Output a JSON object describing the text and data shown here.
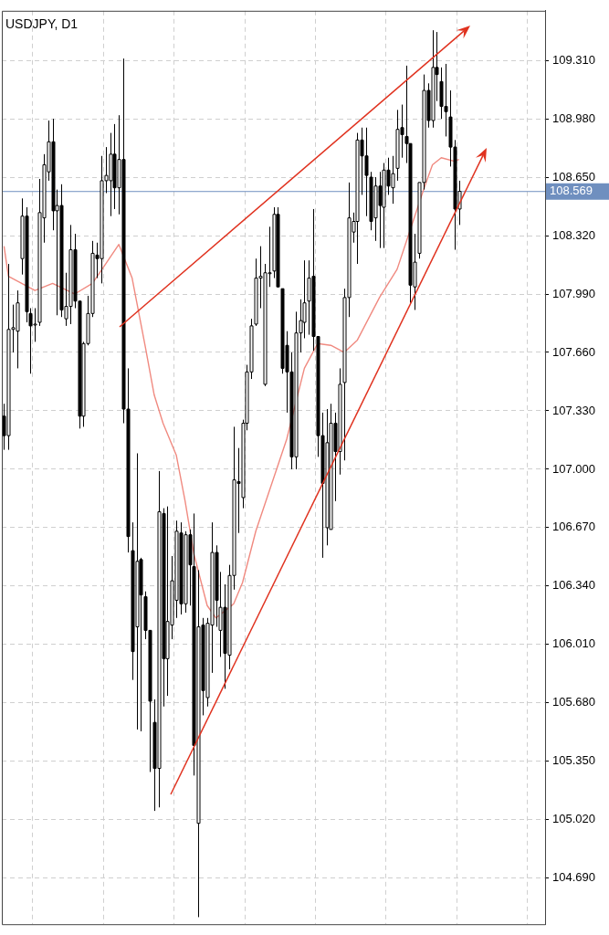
{
  "chart_data": {
    "type": "candlestick",
    "title": "USDJPY, D1",
    "categories": [
      null,
      null,
      null,
      null,
      null,
      null,
      null,
      null,
      null,
      null,
      null,
      null,
      null,
      null,
      null,
      null,
      null,
      null,
      null,
      null,
      null,
      null,
      null,
      null,
      null,
      null,
      null,
      null,
      null,
      null,
      null,
      null,
      null,
      null,
      null,
      null,
      null,
      null,
      null,
      null,
      null,
      null,
      null,
      null,
      null,
      null,
      null,
      null,
      null,
      null,
      null,
      null,
      null,
      null,
      null,
      null,
      null,
      null,
      null,
      null,
      null,
      null,
      null,
      null,
      null,
      null,
      null,
      null,
      null,
      null,
      null,
      null,
      null,
      null,
      null,
      null,
      null,
      null,
      null,
      null,
      null,
      null,
      null,
      null,
      null,
      null,
      null,
      null,
      null,
      null,
      null,
      null,
      null,
      null,
      null,
      null,
      null,
      null,
      null,
      null,
      null,
      null,
      null,
      null,
      null,
      null,
      null,
      null,
      null,
      null,
      null,
      null,
      null,
      null,
      null,
      null,
      null,
      null,
      null,
      null,
      null,
      null,
      null
    ],
    "ohlc": [
      [
        107.3,
        107.37,
        107.11,
        107.19
      ],
      [
        107.19,
        108.16,
        107.11,
        107.79
      ],
      [
        107.79,
        107.93,
        107.66,
        107.8
      ],
      [
        107.78,
        108.01,
        107.57,
        107.94
      ],
      [
        108.19,
        108.53,
        108.1,
        108.43
      ],
      [
        108.43,
        108.48,
        107.83,
        107.89
      ],
      [
        107.88,
        107.91,
        107.54,
        107.81
      ],
      [
        107.82,
        107.91,
        107.72,
        107.82
      ],
      [
        107.83,
        108.64,
        107.81,
        108.45
      ],
      [
        108.42,
        108.78,
        108.28,
        108.72
      ],
      [
        108.68,
        108.97,
        108.63,
        108.85
      ],
      [
        108.85,
        108.98,
        108.35,
        108.46
      ],
      [
        108.46,
        108.58,
        107.87,
        108.49
      ],
      [
        108.49,
        108.61,
        107.86,
        107.9
      ],
      [
        107.85,
        108.11,
        107.81,
        107.92
      ],
      [
        107.92,
        108.38,
        107.82,
        108.24
      ],
      [
        108.24,
        108.33,
        107.91,
        107.95
      ],
      [
        107.95,
        107.95,
        107.23,
        107.3
      ],
      [
        107.3,
        107.72,
        107.24,
        107.71
      ],
      [
        107.71,
        107.98,
        107.7,
        107.88
      ],
      [
        107.88,
        108.29,
        107.86,
        108.22
      ],
      [
        108.21,
        108.28,
        108.08,
        108.19
      ],
      [
        108.19,
        108.77,
        108.05,
        108.63
      ],
      [
        108.63,
        108.82,
        108.56,
        108.66
      ],
      [
        108.63,
        108.9,
        108.43,
        108.78
      ],
      [
        108.78,
        108.95,
        108.47,
        108.59
      ],
      [
        108.59,
        109.0,
        108.44,
        108.75
      ],
      [
        108.75,
        109.32,
        107.26,
        107.34
      ],
      [
        107.34,
        107.57,
        106.53,
        106.62
      ],
      [
        106.54,
        106.7,
        105.81,
        105.97
      ],
      [
        106.11,
        107.09,
        105.53,
        106.48
      ],
      [
        106.49,
        106.5,
        105.52,
        106.29
      ],
      [
        106.28,
        106.31,
        106.04,
        106.09
      ],
      [
        106.09,
        106.09,
        105.29,
        105.69
      ],
      [
        105.57,
        105.7,
        105.07,
        105.31
      ],
      [
        105.31,
        106.99,
        105.09,
        106.76
      ],
      [
        106.75,
        106.78,
        105.66,
        105.93
      ],
      [
        105.93,
        106.79,
        105.72,
        106.14
      ],
      [
        106.12,
        106.51,
        106.04,
        106.37
      ],
      [
        106.26,
        106.71,
        106.16,
        106.65
      ],
      [
        106.64,
        106.7,
        106.18,
        106.24
      ],
      [
        106.24,
        106.65,
        106.19,
        106.63
      ],
      [
        106.63,
        106.66,
        106.23,
        106.46
      ],
      [
        106.45,
        106.75,
        105.27,
        105.44
      ],
      [
        105.0,
        106.43,
        104.47,
        106.11
      ],
      [
        106.12,
        106.16,
        105.61,
        105.75
      ],
      [
        105.71,
        106.16,
        105.66,
        106.13
      ],
      [
        106.12,
        106.7,
        105.85,
        106.53
      ],
      [
        106.53,
        106.57,
        106.11,
        106.26
      ],
      [
        106.09,
        106.42,
        105.94,
        106.22
      ],
      [
        106.22,
        106.35,
        105.76,
        105.96
      ],
      [
        105.95,
        106.46,
        105.87,
        106.4
      ],
      [
        106.4,
        107.24,
        106.32,
        106.94
      ],
      [
        106.93,
        107.12,
        106.64,
        106.92
      ],
      [
        106.84,
        107.28,
        106.78,
        107.26
      ],
      [
        107.26,
        107.59,
        107.22,
        107.55
      ],
      [
        107.55,
        107.85,
        107.51,
        107.81
      ],
      [
        107.82,
        108.19,
        107.81,
        108.08
      ],
      [
        108.08,
        108.26,
        107.91,
        108.09
      ],
      [
        107.48,
        108.16,
        107.47,
        108.11
      ],
      [
        108.11,
        108.37,
        108.03,
        108.11
      ],
      [
        108.12,
        108.48,
        108.08,
        108.44
      ],
      [
        108.44,
        108.48,
        108.03,
        108.03
      ],
      [
        108.02,
        108.02,
        107.54,
        107.57
      ],
      [
        107.7,
        107.78,
        107.32,
        107.55
      ],
      [
        107.55,
        107.66,
        107.0,
        107.07
      ],
      [
        107.07,
        107.89,
        107.0,
        107.77
      ],
      [
        107.77,
        107.96,
        107.66,
        107.84
      ],
      [
        107.83,
        108.18,
        107.74,
        107.94
      ],
      [
        107.95,
        108.18,
        107.76,
        108.08
      ],
      [
        108.09,
        108.47,
        107.67,
        107.75
      ],
      [
        107.75,
        107.75,
        107.07,
        107.19
      ],
      [
        107.19,
        107.32,
        106.5,
        106.92
      ],
      [
        106.67,
        107.34,
        106.57,
        107.15
      ],
      [
        106.66,
        107.37,
        106.66,
        107.26
      ],
      [
        107.26,
        107.32,
        106.82,
        107.1
      ],
      [
        107.1,
        107.57,
        106.97,
        107.48
      ],
      [
        107.49,
        108.02,
        107.05,
        107.97
      ],
      [
        107.97,
        108.62,
        107.86,
        108.42
      ],
      [
        108.34,
        108.45,
        108.28,
        108.4
      ],
      [
        108.4,
        108.9,
        108.16,
        108.86
      ],
      [
        108.86,
        108.93,
        108.55,
        108.77
      ],
      [
        108.77,
        108.93,
        108.43,
        108.66
      ],
      [
        108.65,
        108.68,
        108.35,
        108.4
      ],
      [
        108.42,
        108.65,
        108.29,
        108.6
      ],
      [
        108.6,
        108.68,
        108.25,
        108.49
      ],
      [
        108.48,
        108.73,
        108.25,
        108.69
      ],
      [
        108.69,
        108.76,
        108.55,
        108.6
      ],
      [
        108.59,
        108.77,
        108.5,
        108.67
      ],
      [
        108.7,
        109.03,
        108.63,
        108.92
      ],
      [
        108.93,
        109.06,
        108.76,
        108.89
      ],
      [
        108.88,
        109.28,
        108.73,
        108.84
      ],
      [
        108.84,
        108.84,
        107.94,
        108.04
      ],
      [
        108.03,
        108.33,
        107.9,
        108.17
      ],
      [
        108.22,
        108.62,
        108.19,
        108.62
      ],
      [
        108.62,
        109.23,
        108.58,
        109.14
      ],
      [
        109.14,
        109.18,
        108.93,
        108.97
      ],
      [
        108.97,
        109.48,
        108.93,
        109.27
      ],
      [
        109.27,
        109.47,
        109.08,
        109.23
      ],
      [
        109.19,
        109.27,
        108.98,
        109.05
      ],
      [
        109.05,
        109.29,
        108.88,
        109.02
      ],
      [
        108.99,
        109.14,
        108.71,
        108.82
      ],
      [
        108.82,
        108.86,
        108.24,
        108.47
      ],
      [
        108.47,
        108.63,
        108.38,
        108.57
      ],
      null,
      null,
      null,
      null,
      null,
      null,
      null,
      null,
      null,
      null,
      null,
      null,
      null,
      null,
      null,
      null,
      null,
      null,
      null
    ],
    "series": [
      {
        "type": "line",
        "color": "#f08a80",
        "values": [
          108.26,
          108.09,
          null,
          null,
          null,
          null,
          null,
          108.01,
          null,
          null,
          null,
          108.05,
          null,
          null,
          null,
          null,
          107.99,
          null,
          null,
          null,
          108.05,
          null,
          null,
          108.16,
          null,
          null,
          108.27,
          null,
          null,
          108.08,
          null,
          null,
          107.69,
          null,
          107.42,
          null,
          107.26,
          null,
          null,
          107.08,
          null,
          106.82,
          null,
          106.52,
          null,
          null,
          106.23,
          null,
          106.16,
          null,
          null,
          null,
          106.24,
          null,
          106.36,
          null,
          null,
          106.65,
          null,
          null,
          null,
          null,
          null,
          null,
          107.17,
          null,
          null,
          null,
          107.57,
          null,
          null,
          107.71,
          null,
          null,
          107.7,
          null,
          null,
          107.66,
          null,
          null,
          107.73,
          null,
          null,
          null,
          null,
          107.97,
          null,
          null,
          null,
          108.13,
          null,
          null,
          null,
          null,
          null,
          108.58,
          null,
          108.72,
          null,
          108.76,
          null,
          null,
          108.74,
          108.75,
          null,
          null,
          null,
          null,
          null,
          null,
          null,
          null,
          null,
          null,
          null,
          null,
          null,
          null,
          null,
          null,
          null,
          null,
          null
        ]
      }
    ],
    "ylim": [
      104.43,
      109.59
    ],
    "yticks": [
      {
        "value": 109.31,
        "label": "109.310"
      },
      {
        "value": 108.98,
        "label": "108.980"
      },
      {
        "value": 108.65,
        "label": "108.650"
      },
      {
        "value": 108.32,
        "label": "108.320"
      },
      {
        "value": 107.99,
        "label": "107.990"
      },
      {
        "value": 107.66,
        "label": "107.660"
      },
      {
        "value": 107.33,
        "label": "107.330"
      },
      {
        "value": 107.0,
        "label": "107.000"
      },
      {
        "value": 106.67,
        "label": "106.670"
      },
      {
        "value": 106.34,
        "label": "106.340"
      },
      {
        "value": 106.01,
        "label": "106.010"
      },
      {
        "value": 105.68,
        "label": "105.680"
      },
      {
        "value": 105.35,
        "label": "105.350"
      },
      {
        "value": 105.02,
        "label": "105.020"
      },
      {
        "value": 104.69,
        "label": "104.690"
      }
    ],
    "grid": true,
    "ref_lines": [
      {
        "axis": "y",
        "value": 108.569,
        "label": "108.569",
        "color": "#6f8fbf"
      }
    ]
  }
}
